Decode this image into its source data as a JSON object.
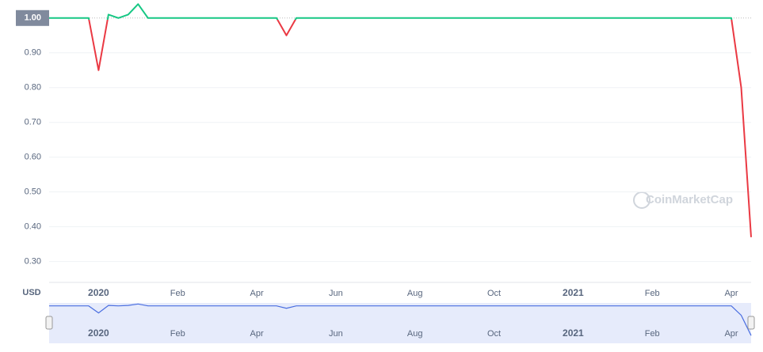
{
  "chart_data": {
    "type": "line",
    "currency": "USD",
    "watermark": "CoinMarketCap",
    "categories": [
      null,
      null,
      null,
      null,
      null,
      "2020",
      null,
      null,
      null,
      null,
      null,
      null,
      null,
      "Feb",
      null,
      null,
      null,
      null,
      null,
      null,
      null,
      "Apr",
      null,
      null,
      null,
      null,
      null,
      null,
      null,
      "Jun",
      null,
      null,
      null,
      null,
      null,
      null,
      null,
      "Aug",
      null,
      null,
      null,
      null,
      null,
      null,
      null,
      "Oct",
      null,
      null,
      null,
      null,
      null,
      null,
      null,
      "2021",
      null,
      null,
      null,
      null,
      null,
      null,
      null,
      "Feb",
      null,
      null,
      null,
      null,
      null,
      null,
      null,
      "Apr",
      null,
      null
    ],
    "values": [
      1.0,
      1.0,
      1.0,
      1.0,
      1.0,
      0.85,
      1.01,
      1.0,
      1.01,
      1.04,
      1.0,
      1.0,
      1.0,
      1.0,
      1.0,
      1.0,
      1.0,
      1.0,
      1.0,
      1.0,
      1.0,
      1.0,
      1.0,
      1.0,
      0.95,
      1.0,
      1.0,
      1.0,
      1.0,
      1.0,
      1.0,
      1.0,
      1.0,
      1.0,
      1.0,
      1.0,
      1.0,
      1.0,
      1.0,
      1.0,
      1.0,
      1.0,
      1.0,
      1.0,
      1.0,
      1.0,
      1.0,
      1.0,
      1.0,
      1.0,
      1.0,
      1.0,
      1.0,
      1.0,
      1.0,
      1.0,
      1.0,
      1.0,
      1.0,
      1.0,
      1.0,
      1.0,
      1.0,
      1.0,
      1.0,
      1.0,
      1.0,
      1.0,
      1.0,
      1.0,
      0.8,
      0.37
    ],
    "up_color": "#16c784",
    "down_color": "#ea3943",
    "navigator_color": "#4a6ee0",
    "ylim": [
      0.24,
      1.045
    ],
    "yticks": [
      {
        "value": 0.3,
        "label": "0.30"
      },
      {
        "value": 0.4,
        "label": "0.40"
      },
      {
        "value": 0.5,
        "label": "0.50"
      },
      {
        "value": 0.6,
        "label": "0.60"
      },
      {
        "value": 0.7,
        "label": "0.70"
      },
      {
        "value": 0.8,
        "label": "0.80"
      },
      {
        "value": 0.9,
        "label": "0.90"
      },
      {
        "value": 1,
        "label": "1.00"
      }
    ],
    "grid": true
  }
}
